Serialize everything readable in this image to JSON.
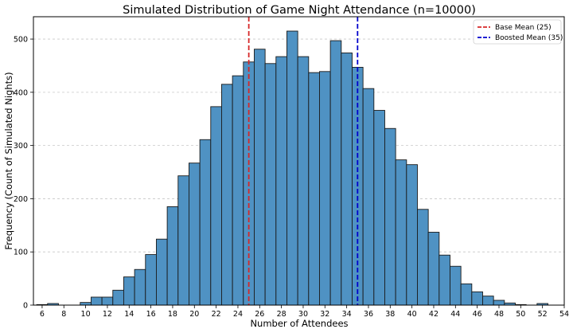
{
  "chart_data": {
    "type": "bar",
    "title": "Simulated Distribution of Game Night Attendance (n=10000)",
    "xlabel": "Number of Attendees",
    "ylabel": "Frequency (Count of Simulated Nights)",
    "xlim": [
      5.2,
      54
    ],
    "ylim": [
      0,
      542
    ],
    "x_ticks": [
      6,
      8,
      10,
      12,
      14,
      16,
      18,
      20,
      22,
      24,
      26,
      28,
      30,
      32,
      34,
      36,
      38,
      40,
      42,
      44,
      46,
      48,
      50,
      52,
      54
    ],
    "y_ticks": [
      0,
      100,
      200,
      300,
      400,
      500
    ],
    "grid": "y-dashed",
    "bar_color": "#4f92c3",
    "bar_edge_color": "#1a1a1a",
    "bins": [
      {
        "x": 6,
        "value": 1
      },
      {
        "x": 7,
        "value": 3
      },
      {
        "x": 8,
        "value": 0
      },
      {
        "x": 9,
        "value": 0
      },
      {
        "x": 10,
        "value": 5
      },
      {
        "x": 11,
        "value": 15
      },
      {
        "x": 12,
        "value": 15
      },
      {
        "x": 13,
        "value": 28
      },
      {
        "x": 14,
        "value": 53
      },
      {
        "x": 15,
        "value": 67
      },
      {
        "x": 16,
        "value": 95
      },
      {
        "x": 17,
        "value": 124
      },
      {
        "x": 18,
        "value": 185
      },
      {
        "x": 19,
        "value": 243
      },
      {
        "x": 20,
        "value": 267
      },
      {
        "x": 21,
        "value": 311
      },
      {
        "x": 22,
        "value": 373
      },
      {
        "x": 23,
        "value": 415
      },
      {
        "x": 24,
        "value": 431
      },
      {
        "x": 25,
        "value": 457
      },
      {
        "x": 26,
        "value": 481
      },
      {
        "x": 27,
        "value": 454
      },
      {
        "x": 28,
        "value": 467
      },
      {
        "x": 29,
        "value": 515
      },
      {
        "x": 30,
        "value": 467
      },
      {
        "x": 31,
        "value": 437
      },
      {
        "x": 32,
        "value": 439
      },
      {
        "x": 33,
        "value": 497
      },
      {
        "x": 34,
        "value": 474
      },
      {
        "x": 35,
        "value": 447
      },
      {
        "x": 36,
        "value": 407
      },
      {
        "x": 37,
        "value": 366
      },
      {
        "x": 38,
        "value": 332
      },
      {
        "x": 39,
        "value": 273
      },
      {
        "x": 40,
        "value": 264
      },
      {
        "x": 41,
        "value": 180
      },
      {
        "x": 42,
        "value": 137
      },
      {
        "x": 43,
        "value": 94
      },
      {
        "x": 44,
        "value": 73
      },
      {
        "x": 45,
        "value": 40
      },
      {
        "x": 46,
        "value": 25
      },
      {
        "x": 47,
        "value": 17
      },
      {
        "x": 48,
        "value": 9
      },
      {
        "x": 49,
        "value": 4
      },
      {
        "x": 50,
        "value": 1
      },
      {
        "x": 51,
        "value": 0
      },
      {
        "x": 52,
        "value": 3
      },
      {
        "x": 53,
        "value": 0
      }
    ],
    "reference_lines": [
      {
        "label": "Base Mean (25)",
        "x": 25,
        "color": "#d62728"
      },
      {
        "label": "Boosted Mean (35)",
        "x": 35,
        "color": "#0000cc"
      }
    ],
    "legend_position": "top-right"
  }
}
